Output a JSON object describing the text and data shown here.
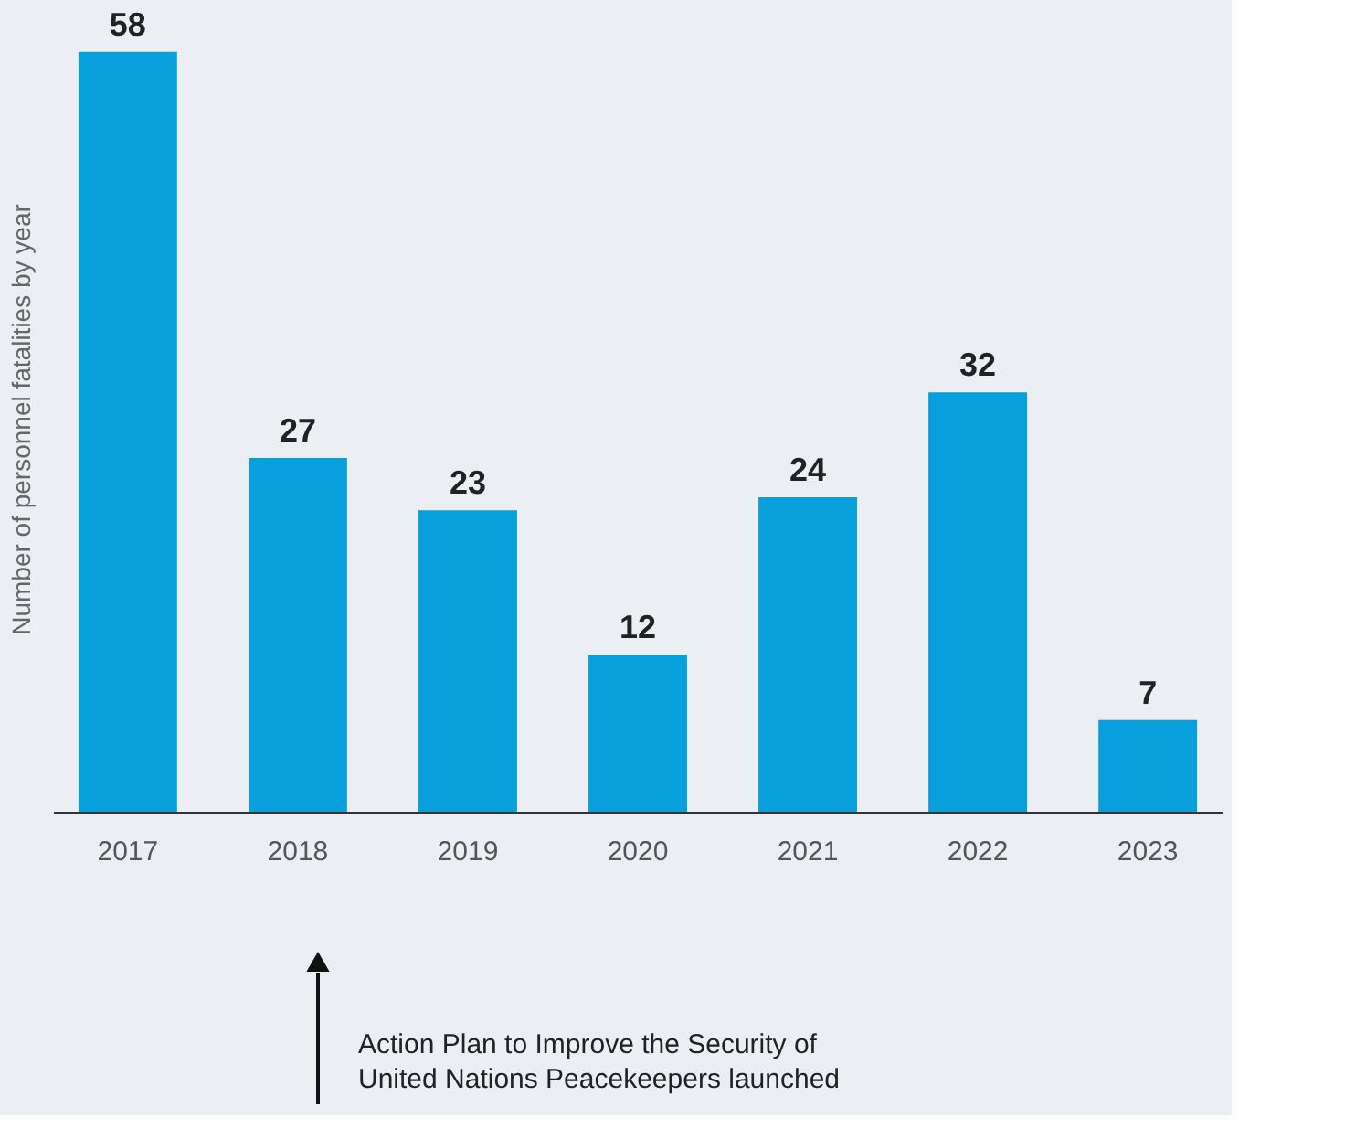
{
  "chart_data": {
    "type": "bar",
    "categories": [
      "2017",
      "2018",
      "2019",
      "2020",
      "2021",
      "2022",
      "2023"
    ],
    "values": [
      58,
      27,
      23,
      12,
      24,
      32,
      7
    ],
    "color": "#079fdc",
    "ylabel": "Number of personnel fatalities by year",
    "data_labels": true,
    "tick_labels": "x",
    "annotations": [
      "Action Plan to Improve the Security of United Nations Peacekeepers launched"
    ]
  }
}
